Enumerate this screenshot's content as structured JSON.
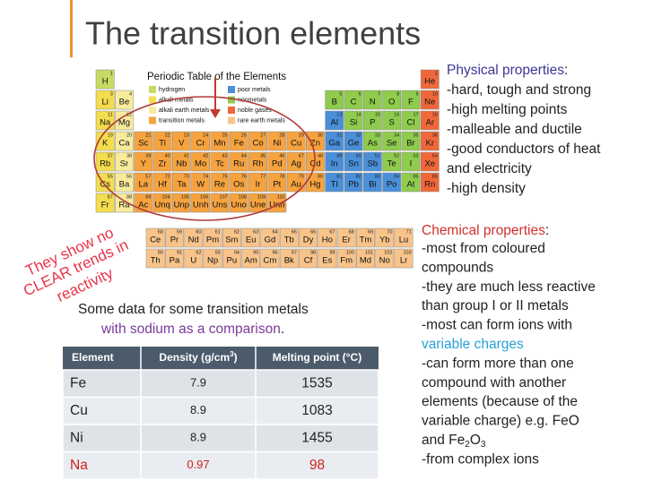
{
  "title": "The transition elements",
  "periodic_table": {
    "title": "Periodic Table of the Elements",
    "legend": [
      {
        "label": "hydrogen",
        "color": "#c9da63"
      },
      {
        "label": "alkali metals",
        "color": "#f3dc4e"
      },
      {
        "label": "alkali earth metals",
        "color": "#f8ec9c"
      },
      {
        "label": "transition metals",
        "color": "#f6a33f"
      },
      {
        "label": "poor metals",
        "color": "#4a8fd8"
      },
      {
        "label": "nonmetals",
        "color": "#8fcb4d"
      },
      {
        "label": "noble gases",
        "color": "#f0683a"
      },
      {
        "label": "rare earth metals",
        "color": "#f8c48a"
      }
    ],
    "rows": [
      [
        [
          1,
          "H"
        ],
        null,
        null,
        null,
        null,
        null,
        null,
        null,
        null,
        null,
        null,
        null,
        null,
        null,
        null,
        null,
        null,
        [
          2,
          "He"
        ]
      ],
      [
        [
          3,
          "Li"
        ],
        [
          4,
          "Be"
        ],
        null,
        null,
        null,
        null,
        null,
        null,
        null,
        null,
        null,
        null,
        [
          5,
          "B"
        ],
        [
          6,
          "C"
        ],
        [
          7,
          "N"
        ],
        [
          8,
          "O"
        ],
        [
          9,
          "F"
        ],
        [
          10,
          "Ne"
        ]
      ],
      [
        [
          11,
          "Na"
        ],
        [
          12,
          "Mg"
        ],
        null,
        null,
        null,
        null,
        null,
        null,
        null,
        null,
        null,
        null,
        [
          13,
          "Al"
        ],
        [
          14,
          "Si"
        ],
        [
          15,
          "P"
        ],
        [
          16,
          "S"
        ],
        [
          17,
          "Cl"
        ],
        [
          18,
          "Ar"
        ]
      ],
      [
        [
          19,
          "K"
        ],
        [
          20,
          "Ca"
        ],
        [
          21,
          "Sc"
        ],
        [
          22,
          "Ti"
        ],
        [
          23,
          "V"
        ],
        [
          24,
          "Cr"
        ],
        [
          25,
          "Mn"
        ],
        [
          26,
          "Fe"
        ],
        [
          27,
          "Co"
        ],
        [
          28,
          "Ni"
        ],
        [
          29,
          "Cu"
        ],
        [
          30,
          "Zn"
        ],
        [
          31,
          "Ga"
        ],
        [
          32,
          "Ge"
        ],
        [
          33,
          "As"
        ],
        [
          34,
          "Se"
        ],
        [
          35,
          "Br"
        ],
        [
          36,
          "Kr"
        ]
      ],
      [
        [
          37,
          "Rb"
        ],
        [
          38,
          "Sr"
        ],
        [
          39,
          "Y"
        ],
        [
          40,
          "Zr"
        ],
        [
          41,
          "Nb"
        ],
        [
          42,
          "Mo"
        ],
        [
          43,
          "Tc"
        ],
        [
          44,
          "Ru"
        ],
        [
          45,
          "Rh"
        ],
        [
          46,
          "Pd"
        ],
        [
          47,
          "Ag"
        ],
        [
          48,
          "Cd"
        ],
        [
          49,
          "In"
        ],
        [
          50,
          "Sn"
        ],
        [
          51,
          "Sb"
        ],
        [
          52,
          "Te"
        ],
        [
          53,
          "I"
        ],
        [
          54,
          "Xe"
        ]
      ],
      [
        [
          55,
          "Cs"
        ],
        [
          56,
          "Ba"
        ],
        [
          57,
          "La"
        ],
        [
          72,
          "Hf"
        ],
        [
          73,
          "Ta"
        ],
        [
          74,
          "W"
        ],
        [
          75,
          "Re"
        ],
        [
          76,
          "Os"
        ],
        [
          77,
          "Ir"
        ],
        [
          78,
          "Pt"
        ],
        [
          79,
          "Au"
        ],
        [
          80,
          "Hg"
        ],
        [
          81,
          "Tl"
        ],
        [
          82,
          "Pb"
        ],
        [
          83,
          "Bi"
        ],
        [
          84,
          "Po"
        ],
        [
          85,
          "At"
        ],
        [
          86,
          "Rn"
        ]
      ],
      [
        [
          87,
          "Fr"
        ],
        [
          88,
          "Ra"
        ],
        [
          89,
          "Ac"
        ],
        [
          104,
          "Unq"
        ],
        [
          105,
          "Unp"
        ],
        [
          106,
          "Unh"
        ],
        [
          107,
          "Uns"
        ],
        [
          108,
          "Uno"
        ],
        [
          109,
          "Une"
        ],
        [
          110,
          "Unn"
        ],
        null,
        null,
        null,
        null,
        null,
        null,
        null,
        null
      ]
    ],
    "f_rows": [
      [
        [
          58,
          "Ce"
        ],
        [
          59,
          "Pr"
        ],
        [
          60,
          "Nd"
        ],
        [
          61,
          "Pm"
        ],
        [
          62,
          "Sm"
        ],
        [
          63,
          "Eu"
        ],
        [
          64,
          "Gd"
        ],
        [
          65,
          "Tb"
        ],
        [
          66,
          "Dy"
        ],
        [
          67,
          "Ho"
        ],
        [
          68,
          "Er"
        ],
        [
          69,
          "Tm"
        ],
        [
          70,
          "Yb"
        ],
        [
          71,
          "Lu"
        ]
      ],
      [
        [
          90,
          "Th"
        ],
        [
          91,
          "Pa"
        ],
        [
          92,
          "U"
        ],
        [
          93,
          "Np"
        ],
        [
          94,
          "Pu"
        ],
        [
          95,
          "Am"
        ],
        [
          96,
          "Cm"
        ],
        [
          97,
          "Bk"
        ],
        [
          98,
          "Cf"
        ],
        [
          99,
          "Es"
        ],
        [
          100,
          "Fm"
        ],
        [
          101,
          "Md"
        ],
        [
          102,
          "No"
        ],
        [
          103,
          "Lr"
        ]
      ]
    ]
  },
  "annotation": [
    "They show no",
    "CLEAR trends in",
    "reactivity"
  ],
  "physical": {
    "heading": [
      "Physical properties",
      ":"
    ],
    "lines": [
      "-hard, tough and strong",
      "-high melting points",
      "-malleable and ductile",
      "-good conductors of heat",
      "and electricity",
      "-high density"
    ]
  },
  "chemical": {
    "heading": [
      "Chemical properties",
      ":"
    ],
    "lines": [
      [
        "-most from coloured"
      ],
      [
        "compounds"
      ],
      [
        "-they are much less reactive"
      ],
      [
        "than group I or II metals"
      ],
      [
        "-most can form ions with"
      ],
      [
        "variable charges"
      ],
      [
        "-can form more than one"
      ],
      [
        "compound with another"
      ],
      [
        "elements (because of the"
      ],
      [
        "variable charge) e.g. FeO"
      ],
      [
        "and Fe",
        "2",
        "O",
        "3"
      ],
      [
        "-from complex ions"
      ]
    ]
  },
  "intro": [
    "Some data for some transition metals",
    "with sodium as a comparison",
    "."
  ],
  "table": {
    "header": [
      [
        "Element"
      ],
      [
        "Density (g/cm",
        "3",
        ")"
      ],
      [
        "Melting point (°C)"
      ]
    ],
    "rows": [
      [
        "Fe",
        7.9,
        1535
      ],
      [
        "Cu",
        8.9,
        1083
      ],
      [
        "Ni",
        8.9,
        1455
      ],
      [
        "Na",
        0.97,
        98
      ]
    ]
  }
}
